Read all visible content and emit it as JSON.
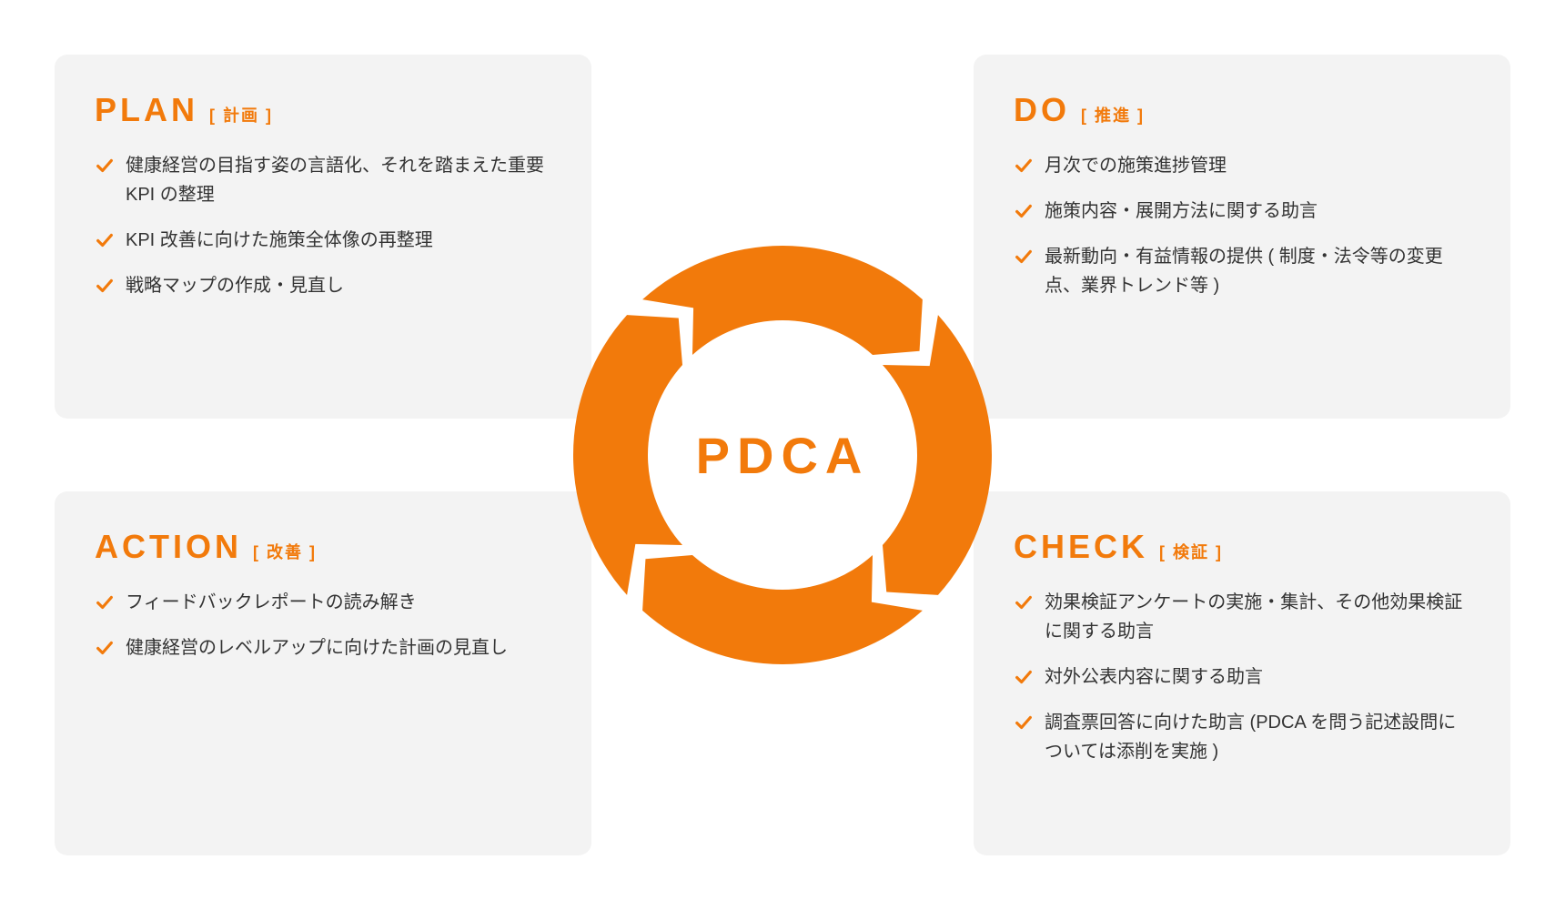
{
  "colors": {
    "accent": "#f27a0b",
    "card_bg": "#f3f3f3",
    "text": "#333333",
    "page_bg": "#ffffff",
    "check": "#f27a0b"
  },
  "cycle": {
    "center_label": "PDCA",
    "ring_outer_radius": 230,
    "ring_inner_radius": 148,
    "gap_angle_deg": 6,
    "arrow_notch_depth": 18,
    "segments": 4,
    "rotation_direction": "clockwise"
  },
  "quadrants": {
    "plan": {
      "title": "PLAN",
      "subtitle": "[ 計画 ]",
      "items": [
        "健康経営の目指す姿の言語化、それを踏まえた重要 KPI の整理",
        "KPI 改善に向けた施策全体像の再整理",
        "戦略マップの作成・見直し"
      ]
    },
    "do": {
      "title": "DO",
      "subtitle": "[ 推進 ]",
      "items": [
        "月次での施策進捗管理",
        "施策内容・展開方法に関する助言",
        "最新動向・有益情報の提供 ( 制度・法令等の変更点、業界トレンド等 )"
      ]
    },
    "action": {
      "title": "ACTION",
      "subtitle": "[ 改善 ]",
      "items": [
        "フィードバックレポートの読み解き",
        "健康経営のレベルアップに向けた計画の見直し"
      ]
    },
    "check": {
      "title": "CHECK",
      "subtitle": "[ 検証 ]",
      "items": [
        "効果検証アンケートの実施・集計、その他効果検証に関する助言",
        "対外公表内容に関する助言",
        "調査票回答に向けた助言 (PDCA を問う記述設問については添削を実施 )"
      ]
    }
  },
  "typography": {
    "title_fontsize": 36,
    "subtitle_fontsize": 18,
    "item_fontsize": 20,
    "center_fontsize": 56
  }
}
